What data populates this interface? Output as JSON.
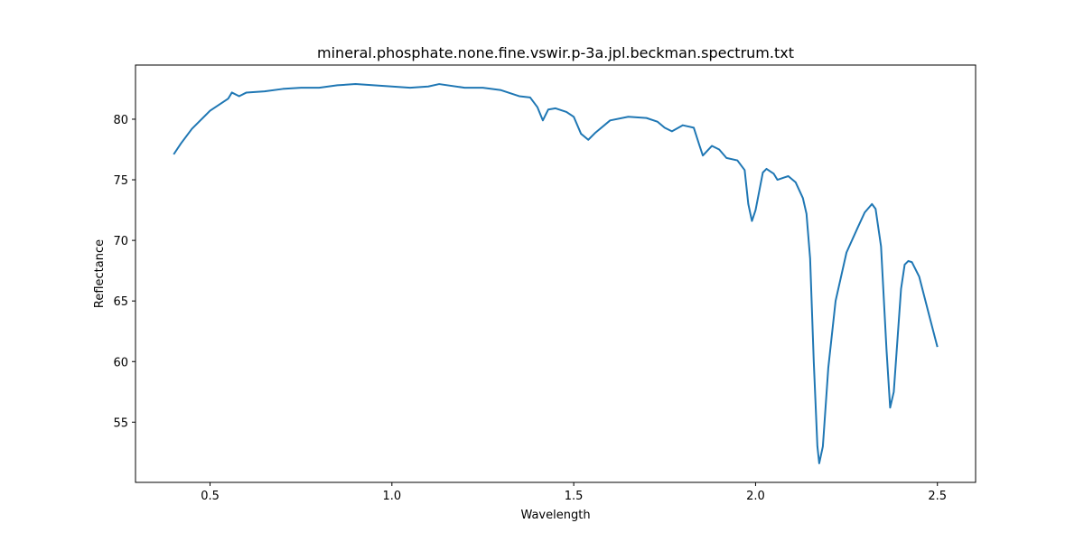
{
  "chart_data": {
    "type": "line",
    "title": "mineral.phosphate.none.fine.vswir.p-3a.jpl.beckman.spectrum.txt",
    "xlabel": "Wavelength",
    "ylabel": "Reflectance",
    "x": [
      0.4,
      0.42,
      0.45,
      0.5,
      0.55,
      0.56,
      0.58,
      0.6,
      0.65,
      0.7,
      0.75,
      0.8,
      0.85,
      0.9,
      0.95,
      1.0,
      1.05,
      1.1,
      1.13,
      1.2,
      1.25,
      1.3,
      1.35,
      1.38,
      1.4,
      1.415,
      1.43,
      1.45,
      1.48,
      1.5,
      1.52,
      1.54,
      1.56,
      1.6,
      1.65,
      1.7,
      1.73,
      1.75,
      1.77,
      1.8,
      1.83,
      1.845,
      1.855,
      1.88,
      1.9,
      1.92,
      1.95,
      1.97,
      1.98,
      1.99,
      2.0,
      2.02,
      2.03,
      2.05,
      2.06,
      2.08,
      2.09,
      2.11,
      2.13,
      2.14,
      2.15,
      2.16,
      2.17,
      2.175,
      2.185,
      2.2,
      2.22,
      2.25,
      2.28,
      2.3,
      2.32,
      2.33,
      2.345,
      2.36,
      2.37,
      2.38,
      2.4,
      2.41,
      2.42,
      2.43,
      2.45,
      2.48,
      2.5
    ],
    "values": [
      77.1,
      78.0,
      79.2,
      80.7,
      81.7,
      82.2,
      81.9,
      82.2,
      82.3,
      82.5,
      82.6,
      82.6,
      82.8,
      82.9,
      82.8,
      82.7,
      82.6,
      82.7,
      82.9,
      82.6,
      82.6,
      82.4,
      81.9,
      81.8,
      81.0,
      79.9,
      80.8,
      80.9,
      80.6,
      80.2,
      78.8,
      78.3,
      78.9,
      79.9,
      80.2,
      80.1,
      79.8,
      79.3,
      79.0,
      79.5,
      79.3,
      77.9,
      77.0,
      77.8,
      77.5,
      76.8,
      76.6,
      75.8,
      73.0,
      71.6,
      72.5,
      75.6,
      75.9,
      75.5,
      75.0,
      75.2,
      75.3,
      74.8,
      73.5,
      72.2,
      68.5,
      60.0,
      53.0,
      51.6,
      53.0,
      59.5,
      65.0,
      69.0,
      71.0,
      72.3,
      73.0,
      72.6,
      69.5,
      61.0,
      56.2,
      57.5,
      66.0,
      68.0,
      68.3,
      68.2,
      67.0,
      63.5,
      61.2
    ],
    "color": "#1f77b4",
    "xlim": [
      0.295,
      2.605
    ],
    "ylim": [
      50.03,
      84.47
    ],
    "xticks": [
      0.5,
      {
        "value": 1.0,
        "label": "1.0"
      },
      1.5,
      {
        "value": 2.0,
        "label": "2.0"
      },
      2.5
    ],
    "yticks": [
      55,
      60,
      65,
      70,
      75,
      80
    ]
  }
}
